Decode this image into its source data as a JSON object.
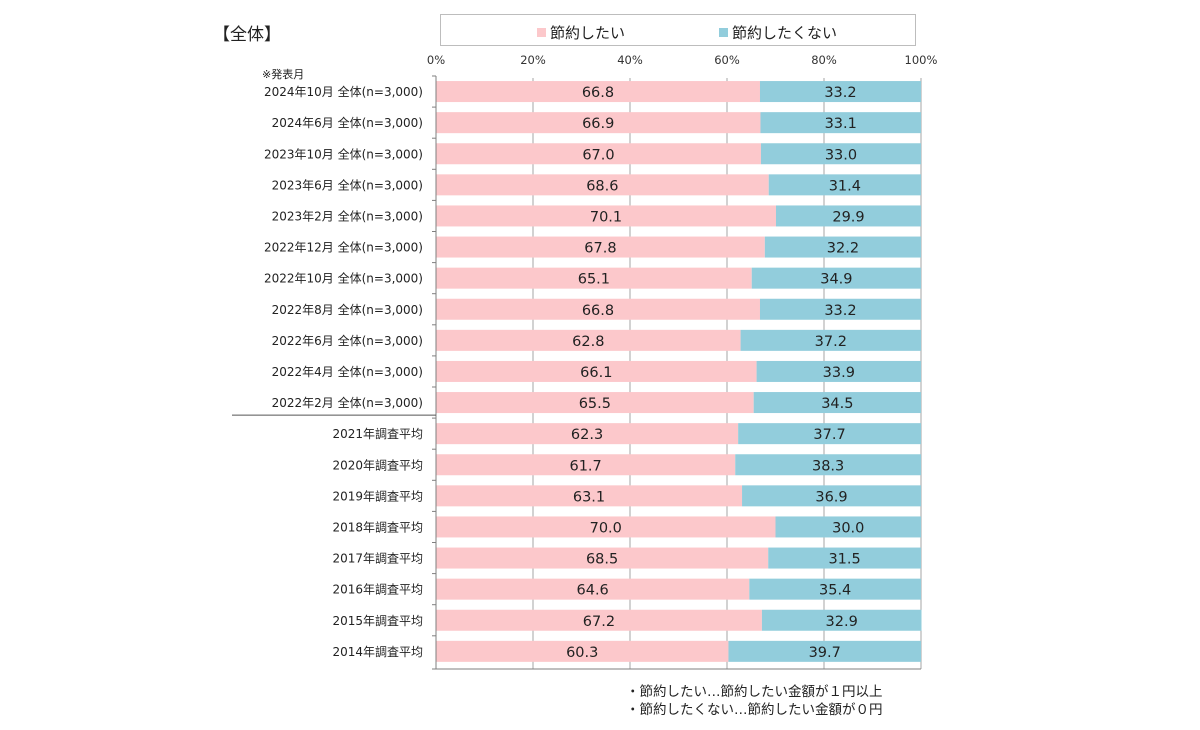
{
  "section_title": "【全体】",
  "note": "※発表月",
  "footnotes": [
    "・節約したい…節約したい金額が１円以上",
    "・節約したくない…節約したい金額が０円"
  ],
  "colors": {
    "want": "#fcc8cb",
    "not_want": "#92cddc",
    "grid": "#a6a6a6",
    "axis": "#7f7f7f"
  },
  "chart_data": {
    "type": "bar",
    "orientation": "horizontal",
    "stacked": "percent",
    "xlim": [
      0,
      100
    ],
    "x_ticks": [
      "0%",
      "20%",
      "40%",
      "60%",
      "80%",
      "100%"
    ],
    "legend_position": "top",
    "grid": true,
    "categories": [
      "2024年10月  全体(n=3,000)",
      "2024年6月  全体(n=3,000)",
      "2023年10月  全体(n=3,000)",
      "2023年6月  全体(n=3,000)",
      "2023年2月  全体(n=3,000)",
      "2022年12月  全体(n=3,000)",
      "2022年10月  全体(n=3,000)",
      "2022年8月  全体(n=3,000)",
      "2022年6月  全体(n=3,000)",
      "2022年4月  全体(n=3,000)",
      "2022年2月  全体(n=3,000)",
      "2021年調査平均",
      "2020年調査平均",
      "2019年調査平均",
      "2018年調査平均",
      "2017年調査平均",
      "2016年調査平均",
      "2015年調査平均",
      "2014年調査平均"
    ],
    "series": [
      {
        "name": "節約したい",
        "values": [
          66.8,
          66.9,
          67.0,
          68.6,
          70.1,
          67.8,
          65.1,
          66.8,
          62.8,
          66.1,
          65.5,
          62.3,
          61.7,
          63.1,
          70.0,
          68.5,
          64.6,
          67.2,
          60.3
        ]
      },
      {
        "name": "節約したくない",
        "values": [
          33.2,
          33.1,
          33.0,
          31.4,
          29.9,
          32.2,
          34.9,
          33.2,
          37.2,
          33.9,
          34.5,
          37.7,
          38.3,
          36.9,
          30.0,
          31.5,
          35.4,
          32.9,
          39.7
        ]
      }
    ]
  }
}
